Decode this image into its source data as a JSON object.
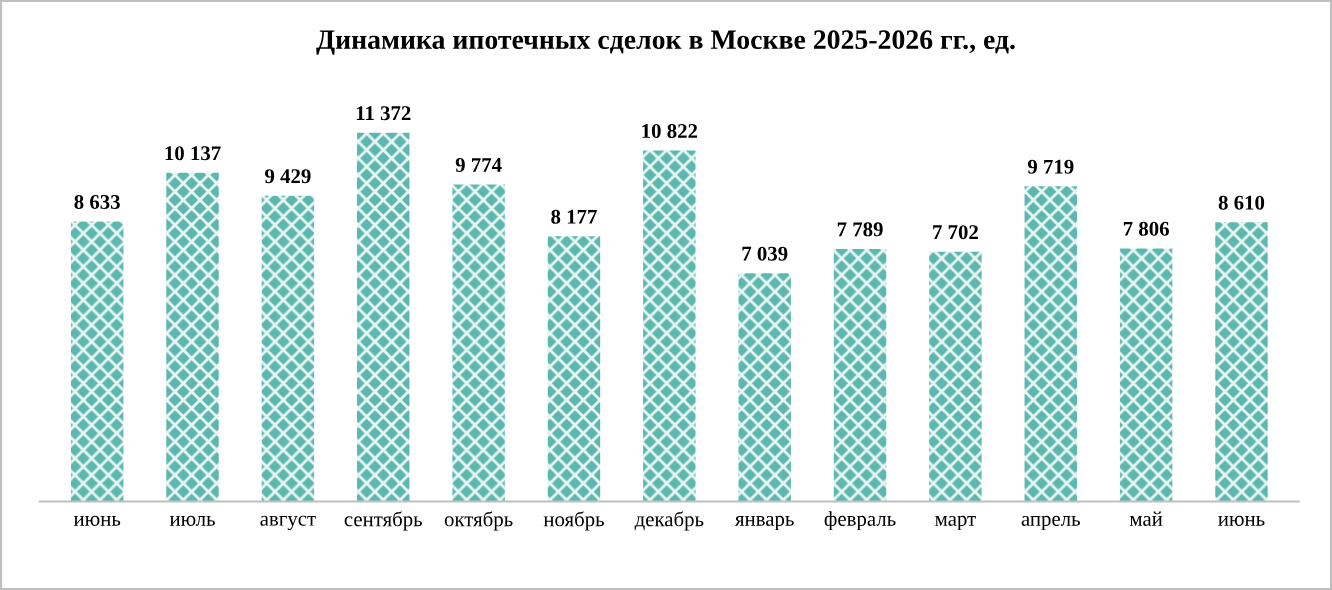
{
  "chart_data": {
    "type": "bar",
    "title": "Динамика ипотечных сделок в Москве 2025-2026 гг., ед.",
    "categories": [
      "июнь",
      "июль",
      "август",
      "сентябрь",
      "октябрь",
      "ноябрь",
      "декабрь",
      "январь",
      "февраль",
      "март",
      "апрель",
      "май",
      "июнь"
    ],
    "values": [
      8633,
      10137,
      9429,
      11372,
      9774,
      8177,
      10822,
      7039,
      7789,
      7702,
      9719,
      7806,
      8610
    ],
    "value_labels": [
      "8 633",
      "10 137",
      "9 429",
      "11 372",
      "9 774",
      "8 177",
      "10 822",
      "7 039",
      "7 789",
      "7 702",
      "9 719",
      "7 806",
      "8 610"
    ],
    "color": "#5cb8ae"
  }
}
